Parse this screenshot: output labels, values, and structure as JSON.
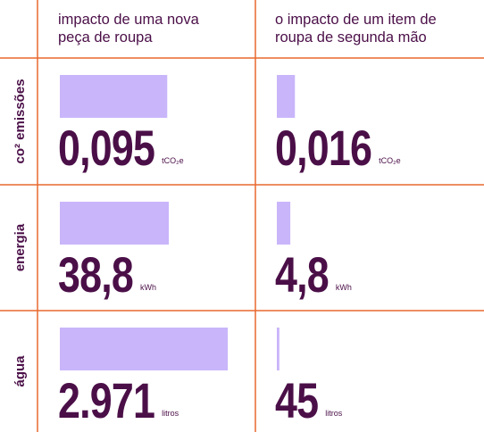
{
  "columns": [
    "impacto de uma nova peça de roupa",
    "o impacto de um item de roupa de segunda mão"
  ],
  "column_lines": [
    [
      "impacto de uma nova",
      "peça de roupa"
    ],
    [
      "o impacto de um item de",
      "roupa de segunda mão"
    ]
  ],
  "rows": [
    {
      "label": "co² emissões",
      "unit": "tCO₂e",
      "values": [
        0.095,
        0.016
      ],
      "value_labels": [
        "0,095",
        "0,016"
      ],
      "xlim": [
        0,
        0.158
      ]
    },
    {
      "label": "energia",
      "unit": "kWh",
      "values": [
        38.8,
        4.8
      ],
      "value_labels": [
        "38,8",
        "4,8"
      ],
      "xlim": [
        0,
        63.6
      ]
    },
    {
      "label": "água",
      "unit": "litros",
      "values": [
        2971,
        45
      ],
      "value_labels": [
        "2.971",
        "45"
      ],
      "xlim": [
        0,
        3160
      ]
    }
  ],
  "bar_color": "#c9b5fa"
}
